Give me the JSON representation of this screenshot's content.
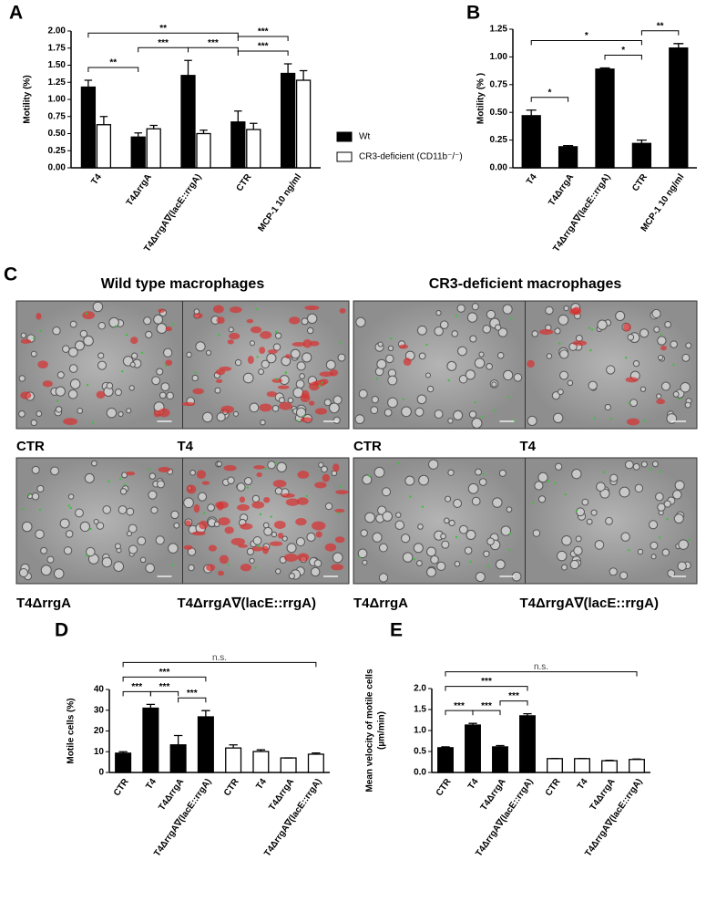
{
  "chart_data": [
    {
      "type": "bar",
      "panel": "A",
      "ylabel": "Motility (%)",
      "categories": [
        "T4",
        "T4ΔrrgA",
        "T4ΔrrgA∇(lacE::rrgA)",
        "CTR",
        "MCP-1 10 ng/ml"
      ],
      "series": [
        {
          "name": "Wt",
          "color": "#000000",
          "values": [
            1.18,
            0.45,
            1.35,
            0.67,
            1.38
          ],
          "errors": [
            0.1,
            0.06,
            0.22,
            0.16,
            0.14
          ]
        },
        {
          "name": "CR3-deficient (CD11b⁻/⁻)",
          "color": "#ffffff",
          "values": [
            0.63,
            0.57,
            0.5,
            0.56,
            1.28
          ],
          "errors": [
            0.12,
            0.05,
            0.05,
            0.09,
            0.14
          ]
        }
      ],
      "ylim": [
        0,
        2
      ],
      "yticks": [
        {
          "value": 0,
          "label": "0.00"
        },
        {
          "value": 0.25,
          "label": "0.25"
        },
        {
          "value": 0.5,
          "label": "0.50"
        },
        {
          "value": 0.75,
          "label": "0.75"
        },
        {
          "value": 1,
          "label": "1.00"
        },
        {
          "value": 1.25,
          "label": "1.25"
        },
        {
          "value": 1.5,
          "label": "1.50"
        },
        {
          "value": 1.75,
          "label": "1.75"
        },
        {
          "value": 2,
          "label": "2.00"
        }
      ],
      "annotations": [
        {
          "from": 0,
          "to": 1,
          "label": "**"
        },
        {
          "from": 1,
          "to": 2,
          "label": "***"
        },
        {
          "from": 2,
          "to": 3,
          "label": "***"
        },
        {
          "from": 3,
          "to": 4,
          "label": "***"
        },
        {
          "from": 0,
          "to": 3,
          "label": "**"
        },
        {
          "from": 3,
          "to": 4,
          "label": "***"
        }
      ]
    },
    {
      "type": "bar",
      "panel": "B",
      "ylabel": "Motility (% )",
      "categories": [
        "T4",
        "T4ΔrrgA",
        "T4ΔrrgA∇(lacE::rrgA)",
        "CTR",
        "MCP-1 10 ng/ml"
      ],
      "values": [
        0.47,
        0.19,
        0.89,
        0.22,
        1.08
      ],
      "errors": [
        0.05,
        0.01,
        0.01,
        0.03,
        0.04
      ],
      "color": "#000000",
      "ylim": [
        0,
        1.25
      ],
      "yticks": [
        {
          "value": 0,
          "label": "0.00"
        },
        {
          "value": 0.25,
          "label": "0.25"
        },
        {
          "value": 0.5,
          "label": "0.50"
        },
        {
          "value": 0.75,
          "label": "0.75"
        },
        {
          "value": 1,
          "label": "1.00"
        },
        {
          "value": 1.25,
          "label": "1.25"
        }
      ],
      "annotations": [
        {
          "from": 0,
          "to": 1,
          "label": "*"
        },
        {
          "from": 2,
          "to": 3,
          "label": "*"
        },
        {
          "from": 3,
          "to": 4,
          "label": "**"
        },
        {
          "from": 0,
          "to": 3,
          "label": "*"
        }
      ]
    },
    {
      "type": "bar",
      "panel": "D",
      "ylabel": "Motile cells (%)",
      "categories": [
        "CTR",
        "T4",
        "T4ΔrrgA",
        "T4ΔrrgA∇(lacE::rrgA)",
        "CTR",
        "T4",
        "T4ΔrrgA",
        "T4ΔrrgA∇(lacE::rrgA)"
      ],
      "values": [
        9.3,
        31,
        13.3,
        26.8,
        11.8,
        10.1,
        7,
        8.8
      ],
      "errors": [
        0.7,
        1.8,
        4.5,
        3,
        1.5,
        0.8,
        0,
        0.6
      ],
      "colors": [
        "#000000",
        "#000000",
        "#000000",
        "#000000",
        "#ffffff",
        "#ffffff",
        "#ffffff",
        "#ffffff"
      ],
      "ylim": [
        0,
        40
      ],
      "yticks": [
        0,
        10,
        20,
        30,
        40
      ],
      "annotations": [
        {
          "from": 0,
          "to": 1,
          "label": "***"
        },
        {
          "from": 1,
          "to": 2,
          "label": "***"
        },
        {
          "from": 2,
          "to": 3,
          "label": "***"
        },
        {
          "from": 0,
          "to": 3,
          "label": "***"
        },
        {
          "from": 0,
          "to": 7,
          "label": "n.s."
        }
      ]
    },
    {
      "type": "bar",
      "panel": "E",
      "ylabel": [
        "Mean velocity of motile cells",
        "(µm/min)"
      ],
      "categories": [
        "CTR",
        "T4",
        "T4ΔrrgA",
        "T4ΔrrgA∇(lacE::rrgA)",
        "CTR",
        "T4",
        "T4ΔrrgA",
        "T4ΔrrgA∇(lacE::rrgA)"
      ],
      "values": [
        0.59,
        1.13,
        0.61,
        1.35,
        0.33,
        0.33,
        0.28,
        0.31
      ],
      "errors": [
        0.02,
        0.04,
        0.03,
        0.05,
        0.005,
        0.005,
        0.01,
        0.01
      ],
      "colors": [
        "#000000",
        "#000000",
        "#000000",
        "#000000",
        "#ffffff",
        "#ffffff",
        "#ffffff",
        "#ffffff"
      ],
      "ylim": [
        0,
        2
      ],
      "yticks": [
        {
          "value": 0,
          "label": "0.0"
        },
        {
          "value": 0.5,
          "label": "0.5"
        },
        {
          "value": 1,
          "label": "1.0"
        },
        {
          "value": 1.5,
          "label": "1.5"
        },
        {
          "value": 2,
          "label": "2.0"
        }
      ],
      "annotations": [
        {
          "from": 0,
          "to": 1,
          "label": "***"
        },
        {
          "from": 1,
          "to": 2,
          "label": "***"
        },
        {
          "from": 2,
          "to": 3,
          "label": "***"
        },
        {
          "from": 0,
          "to": 3,
          "label": "***"
        },
        {
          "from": 0,
          "to": 7,
          "label": "n.s."
        }
      ]
    }
  ],
  "panel_c": {
    "label": "C",
    "groups": [
      {
        "title": "Wild type macrophages",
        "images": [
          "CTR",
          "T4",
          "T4ΔrrgA",
          "T4ΔrrgA∇(lacE::rrgA)"
        ]
      },
      {
        "title": "CR3-deficient macrophages",
        "images": [
          "CTR",
          "T4",
          "T4ΔrrgA",
          "T4ΔrrgA∇(lacE::rrgA)"
        ]
      }
    ]
  }
}
